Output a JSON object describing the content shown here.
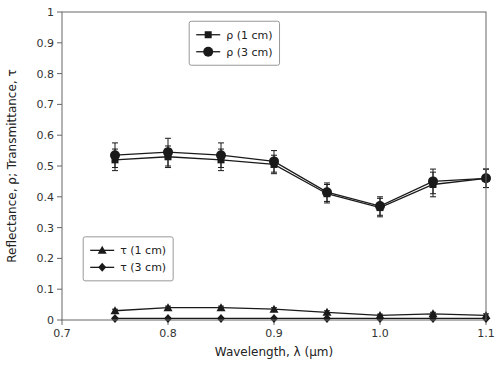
{
  "chart_data": {
    "type": "line",
    "xlabel": "Wavelength, λ (μm)",
    "ylabel": "Reflectance, ρ; Transmittance, τ",
    "x": [
      0.75,
      0.8,
      0.85,
      0.9,
      0.95,
      1.0,
      1.05,
      1.1
    ],
    "series": [
      {
        "name": "ρ (1 cm)",
        "color": "#1a1a1a",
        "marker": "square",
        "line_style": "solid",
        "values": [
          0.52,
          0.53,
          0.52,
          0.505,
          0.41,
          0.365,
          0.44,
          0.46
        ],
        "errors": [
          0.035,
          0.035,
          0.035,
          0.03,
          0.03,
          0.03,
          0.04,
          0.03
        ]
      },
      {
        "name": "ρ (3 cm)",
        "color": "#1a1a1a",
        "marker": "circle",
        "line_style": "solid",
        "values": [
          0.535,
          0.545,
          0.535,
          0.515,
          0.415,
          0.37,
          0.45,
          0.46
        ],
        "errors": [
          0.04,
          0.045,
          0.04,
          0.035,
          0.03,
          0.03,
          0.04,
          0.03
        ]
      },
      {
        "name": "τ (1 cm)",
        "color": "#1a1a1a",
        "marker": "triangle",
        "line_style": "solid",
        "values": [
          0.03,
          0.04,
          0.04,
          0.035,
          0.025,
          0.015,
          0.02,
          0.015
        ],
        "errors": [
          0.005,
          0.005,
          0.005,
          0.005,
          0.005,
          0.004,
          0.005,
          0.005
        ]
      },
      {
        "name": "τ (3 cm)",
        "color": "#1a1a1a",
        "marker": "diamond",
        "line_style": "solid",
        "values": [
          0.005,
          0.005,
          0.005,
          0.005,
          0.005,
          0.005,
          0.005,
          0.005
        ],
        "errors": [
          0.002,
          0.002,
          0.002,
          0.002,
          0.002,
          0.002,
          0.002,
          0.002
        ]
      }
    ],
    "xlim": [
      0.7,
      1.1
    ],
    "ylim": [
      0.0,
      1.0
    ],
    "xticks": [
      0.7,
      0.8,
      0.9,
      {
        "value": 1.0,
        "label": "1.0"
      },
      1.1
    ],
    "yticks": [
      0,
      0.1,
      0.2,
      0.3,
      0.4,
      0.5,
      0.6,
      0.7,
      0.8,
      0.9,
      1
    ],
    "grid": false
  }
}
